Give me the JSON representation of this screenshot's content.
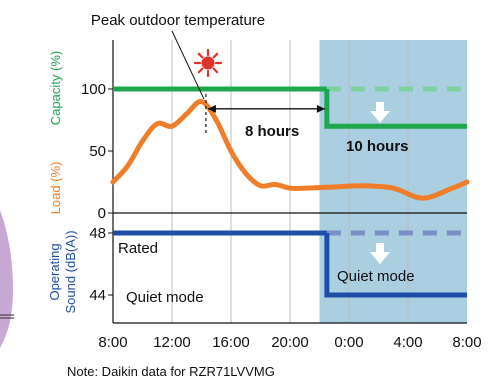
{
  "colors": {
    "capacity": "#1fa74e",
    "capacity_dashed": "#7fd1a0",
    "load": "#ef7d2a",
    "sound": "#1f4ea8",
    "sound_dashed": "#7a8ec7",
    "night_bg": "#a9cfe0",
    "axis": "#111111",
    "gridline": "#bdbdbd"
  },
  "icons": {
    "day": "sun-icon",
    "night": "moon-icon",
    "arrow_capacity": "down-arrow-icon",
    "arrow_sound": "down-arrow-icon"
  },
  "footnote": "Note: Daikin data for RZR71LVVMG",
  "chart_data": [
    {
      "type": "line",
      "panel": "top",
      "x_tick_labels": [
        "8:00",
        "12:00",
        "16:00",
        "20:00",
        "0:00",
        "4:00",
        "8:00"
      ],
      "x_hours_since_8am": [
        0,
        4,
        8,
        12,
        16,
        20,
        24
      ],
      "night_band_start": 14,
      "y_ticks": [
        0,
        50,
        100
      ],
      "ylim": [
        0,
        125
      ],
      "ylabels": [
        {
          "text": "Capacity (%)",
          "series": "capacity"
        },
        {
          "text": "Load (%)",
          "series": "load"
        }
      ],
      "series": [
        {
          "key": "capacity",
          "segments": [
            {
              "style": "solid",
              "points": [
                [
                  0,
                  100
                ],
                [
                  14.5,
                  100
                ]
              ]
            },
            {
              "style": "dashed",
              "points": [
                [
                  14.5,
                  100
                ],
                [
                  24,
                  100
                ]
              ]
            },
            {
              "style": "solid",
              "points": [
                [
                  14.5,
                  100
                ],
                [
                  14.5,
                  70
                ],
                [
                  24,
                  70
                ]
              ]
            }
          ]
        },
        {
          "key": "load",
          "points": [
            [
              0,
              25
            ],
            [
              1,
              38
            ],
            [
              2,
              58
            ],
            [
              3,
              72
            ],
            [
              4,
              70
            ],
            [
              5,
              80
            ],
            [
              6,
              90
            ],
            [
              7,
              75
            ],
            [
              8,
              50
            ],
            [
              9,
              32
            ],
            [
              10,
              22
            ],
            [
              11,
              23
            ],
            [
              12,
              20
            ],
            [
              13,
              20
            ],
            [
              15,
              21
            ],
            [
              17,
              22
            ],
            [
              19,
              20
            ],
            [
              21,
              12
            ],
            [
              23,
              20
            ],
            [
              24,
              25
            ]
          ]
        }
      ],
      "annotations": {
        "peak_label": "Peak outdoor temperature",
        "peak_x": 6.3,
        "eight_hours": {
          "label": "8 hours",
          "from": 6.3,
          "to": 14.5,
          "y": 84
        },
        "ten_hours": {
          "label": "10 hours"
        }
      }
    },
    {
      "type": "line",
      "panel": "bottom",
      "y_ticks": [
        44,
        48
      ],
      "ylabels": [
        {
          "text": "Operating",
          "series": "sound"
        },
        {
          "text": "Sound (dB(A))",
          "series": "sound"
        }
      ],
      "series": [
        {
          "key": "sound",
          "segments": [
            {
              "style": "solid",
              "points": [
                [
                  0,
                  48
                ],
                [
                  14.5,
                  48
                ]
              ]
            },
            {
              "style": "dashed",
              "points": [
                [
                  14.5,
                  48
                ],
                [
                  24,
                  48
                ]
              ]
            },
            {
              "style": "solid",
              "points": [
                [
                  14.5,
                  48
                ],
                [
                  14.5,
                  44
                ],
                [
                  24,
                  44
                ]
              ]
            }
          ]
        }
      ],
      "annotations": {
        "rated": "Rated",
        "quiet_left": "Quiet mode",
        "quiet_right": "Quiet mode"
      }
    }
  ]
}
